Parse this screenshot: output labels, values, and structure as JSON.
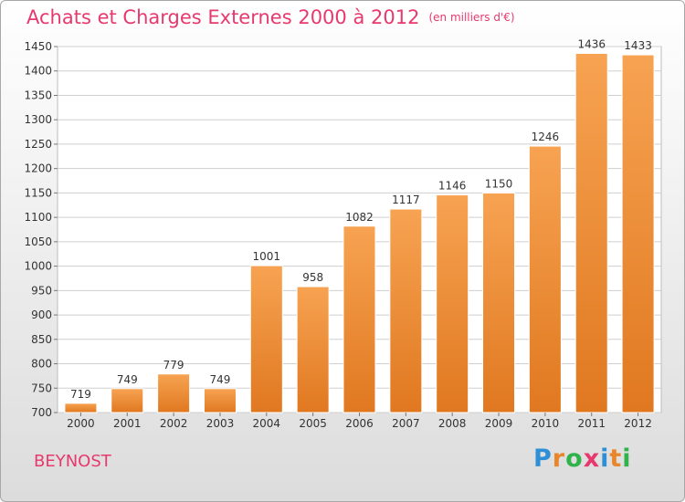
{
  "title": "Achats et Charges Externes 2000 à 2012",
  "unit": "(en milliers d'€)",
  "town": "BEYNOST",
  "logo": {
    "text": "Proxiti",
    "letters": [
      "P",
      "r",
      "o",
      "x",
      "i",
      "t",
      "i"
    ],
    "colors": [
      "#2f8fd6",
      "#e8862c",
      "#2fb34a",
      "#e8396f",
      "#2f8fd6",
      "#e8862c",
      "#2fb34a"
    ]
  },
  "colors": {
    "bar_top": "#f7a352",
    "bar_bottom": "#e07820",
    "grid": "#cfcfcf",
    "axis_text": "#333333",
    "title": "#e8396f"
  },
  "chart_data": {
    "type": "bar",
    "categories": [
      "2000",
      "2001",
      "2002",
      "2003",
      "2004",
      "2005",
      "2006",
      "2007",
      "2008",
      "2009",
      "2010",
      "2011",
      "2012"
    ],
    "values": [
      719,
      749,
      779,
      749,
      1001,
      958,
      1082,
      1117,
      1146,
      1150,
      1246,
      1436,
      1433
    ],
    "ylim": [
      700,
      1450
    ],
    "yticks": [
      700,
      750,
      800,
      850,
      900,
      950,
      1000,
      1050,
      1100,
      1150,
      1200,
      1250,
      1300,
      1350,
      1400,
      1450
    ],
    "grid": true,
    "xlabel": "",
    "ylabel": ""
  }
}
